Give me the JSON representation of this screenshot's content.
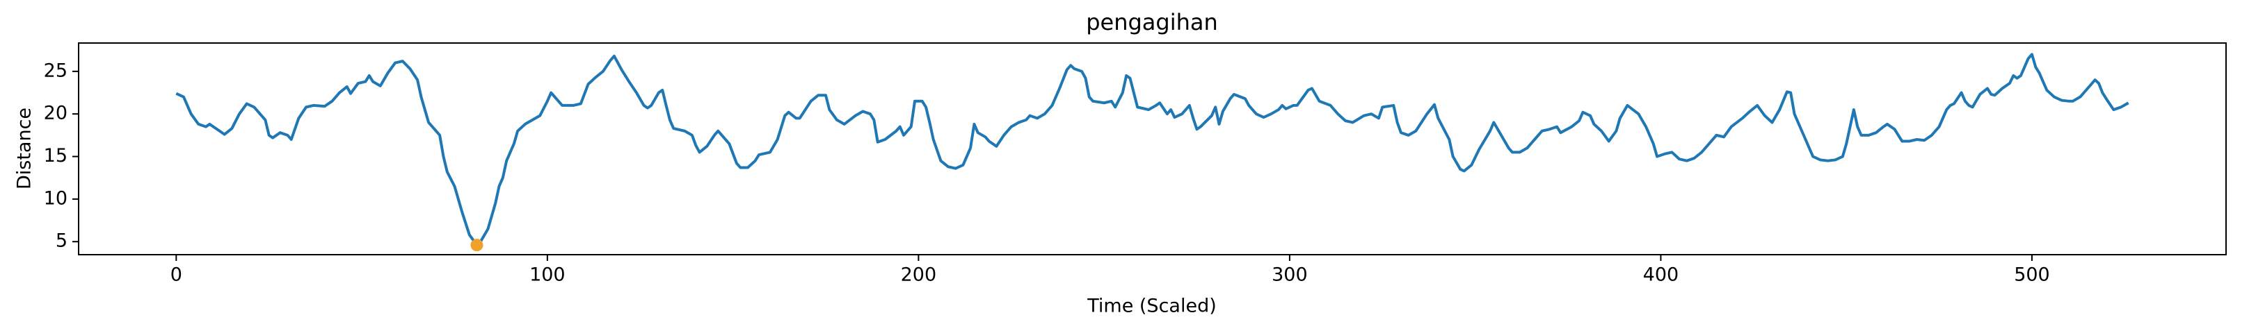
{
  "chart_data": {
    "type": "line",
    "title": "pengagihan",
    "xlabel": "Time (Scaled)",
    "ylabel": "Distance",
    "xlim": [
      -26.3,
      552.3
    ],
    "ylim": [
      3.47,
      28.33
    ],
    "xticks": [
      0,
      100,
      200,
      300,
      400,
      500
    ],
    "yticks": [
      5,
      10,
      15,
      20,
      25
    ],
    "grid": false,
    "x": [
      0,
      2,
      4,
      6,
      8,
      9,
      11,
      13,
      15,
      17,
      19,
      21,
      23,
      24,
      25,
      26,
      28,
      30,
      31,
      33,
      35,
      37,
      40,
      42,
      44,
      46,
      47,
      49,
      51,
      52,
      53,
      55,
      57,
      59,
      61,
      63,
      65,
      66,
      67,
      68,
      70,
      71,
      72,
      73,
      75,
      77,
      79,
      81,
      82,
      84,
      86,
      87,
      88,
      89,
      91,
      92,
      94,
      96,
      98,
      100,
      101,
      103,
      104,
      107,
      109,
      111,
      113,
      115,
      117,
      118,
      120,
      122,
      124,
      126,
      127,
      128,
      130,
      131,
      132,
      133,
      134,
      137,
      139,
      140,
      141,
      143,
      145,
      146,
      149,
      151,
      152,
      154,
      156,
      157,
      160,
      162,
      164,
      165,
      167,
      168,
      171,
      173,
      175,
      176,
      178,
      180,
      183,
      185,
      187,
      188,
      189,
      191,
      194,
      195,
      196,
      198,
      199,
      201,
      202,
      203,
      204,
      206,
      208,
      210,
      212,
      213,
      214,
      215,
      216,
      218,
      219,
      221,
      223,
      225,
      227,
      229,
      230,
      232,
      234,
      236,
      238,
      240,
      241,
      242,
      244,
      245,
      246,
      247,
      250,
      252,
      253,
      255,
      256,
      257,
      259,
      262,
      264,
      265,
      267,
      268,
      269,
      271,
      273,
      274,
      275,
      276,
      279,
      280,
      281,
      282,
      284,
      285,
      288,
      289,
      291,
      293,
      295,
      297,
      298,
      299,
      301,
      302,
      305,
      306,
      308,
      311,
      313,
      315,
      317,
      320,
      322,
      324,
      325,
      328,
      329,
      330,
      332,
      334,
      337,
      339,
      340,
      343,
      344,
      346,
      347,
      349,
      351,
      354,
      355,
      357,
      359,
      360,
      362,
      364,
      366,
      368,
      370,
      372,
      373,
      376,
      378,
      379,
      381,
      382,
      384,
      386,
      388,
      389,
      391,
      394,
      396,
      398,
      399,
      401,
      403,
      405,
      407,
      409,
      411,
      413,
      415,
      417,
      419,
      422,
      424,
      426,
      428,
      430,
      432,
      434,
      435,
      436,
      438,
      439,
      441,
      443,
      445,
      447,
      449,
      450,
      452,
      453,
      454,
      456,
      458,
      460,
      461,
      463,
      465,
      467,
      469,
      471,
      473,
      475,
      477,
      478,
      479,
      481,
      482,
      483,
      484,
      486,
      488,
      489,
      490,
      492,
      494,
      495,
      496,
      497,
      499,
      500,
      501,
      502,
      504,
      506,
      508,
      510,
      511,
      513,
      514,
      516,
      517,
      518,
      519,
      520,
      522,
      524,
      526
    ],
    "series": [
      {
        "color": "#1f77b4",
        "values": [
          22.4,
          22,
          20,
          18.8,
          18.5,
          18.8,
          18.2,
          17.6,
          18.3,
          20,
          21.2,
          20.8,
          19.8,
          19.3,
          17.5,
          17.2,
          17.8,
          17.5,
          17,
          19.5,
          20.8,
          21,
          20.9,
          21.5,
          22.5,
          23.2,
          22.4,
          23.6,
          23.8,
          24.5,
          23.8,
          23.3,
          24.8,
          26,
          26.2,
          25.3,
          24,
          22,
          20.5,
          19,
          18,
          17.5,
          15,
          13.2,
          11.5,
          8.5,
          5.8,
          4.6,
          5,
          6.5,
          9.5,
          11.5,
          12.5,
          14.5,
          16.5,
          18,
          18.8,
          19.3,
          19.8,
          21.5,
          22.5,
          21.5,
          21,
          21,
          21.2,
          23.5,
          24.3,
          25,
          26.3,
          26.8,
          25.2,
          23.8,
          22.5,
          21,
          20.7,
          21,
          22.5,
          22.8,
          21,
          19.3,
          18.3,
          18,
          17.5,
          16.3,
          15.5,
          16.2,
          17.5,
          18,
          16.5,
          14.2,
          13.7,
          13.7,
          14.5,
          15.2,
          15.5,
          17,
          19.8,
          20.2,
          19.5,
          19.5,
          21.5,
          22.2,
          22.2,
          20.5,
          19.3,
          18.8,
          19.8,
          20.3,
          20,
          19.3,
          16.7,
          17,
          18,
          18.5,
          17.5,
          18.5,
          21.5,
          21.5,
          20.8,
          19,
          17,
          14.5,
          13.8,
          13.6,
          14,
          15,
          16,
          18.8,
          17.8,
          17.3,
          16.8,
          16.2,
          17.5,
          18.5,
          19,
          19.3,
          19.8,
          19.5,
          20,
          21,
          23,
          25.2,
          25.7,
          25.3,
          25,
          24.2,
          22,
          21.5,
          21.3,
          21.5,
          20.8,
          22.5,
          24.5,
          24.2,
          20.8,
          20.5,
          21,
          21.3,
          20,
          20.5,
          19.6,
          20,
          21,
          19.5,
          18.2,
          18.5,
          19.8,
          20.8,
          18.8,
          20.3,
          21.8,
          22.3,
          21.8,
          21,
          20,
          19.6,
          20,
          20.5,
          21,
          20.6,
          21,
          21,
          22.8,
          23,
          21.5,
          21,
          20,
          19.2,
          19,
          19.8,
          20,
          19.5,
          20.8,
          21,
          19,
          17.8,
          17.5,
          18,
          20,
          21.1,
          19.5,
          17,
          15,
          13.5,
          13.3,
          14,
          15.8,
          18,
          19,
          17.5,
          16,
          15.5,
          15.5,
          16,
          17,
          18,
          18.2,
          18.5,
          17.8,
          18.5,
          19.2,
          20.2,
          19.8,
          18.8,
          18,
          16.8,
          18,
          19.5,
          21,
          20,
          18.5,
          16.5,
          15,
          15.3,
          15.5,
          14.7,
          14.5,
          14.8,
          15.5,
          16.5,
          17.5,
          17.3,
          18.5,
          19.5,
          20.3,
          21,
          19.8,
          19,
          20.5,
          22.6,
          22.5,
          20,
          18,
          17,
          15,
          14.6,
          14.5,
          14.6,
          15,
          16.5,
          20.5,
          18.5,
          17.5,
          17.5,
          17.8,
          18.5,
          18.8,
          18.2,
          16.8,
          16.8,
          17,
          16.9,
          17.5,
          18.5,
          20.5,
          21,
          21.2,
          22.5,
          21.5,
          21,
          20.8,
          22.3,
          23,
          22.3,
          22.2,
          23,
          23.6,
          24.5,
          24.2,
          24.5,
          26.5,
          27,
          25.5,
          24.8,
          22.8,
          22,
          21.6,
          21.5,
          21.5,
          22,
          22.5,
          23.5,
          24,
          23.6,
          22.5,
          21.8,
          20.5,
          20.8,
          21.3
        ]
      }
    ],
    "markers": [
      {
        "x": 81,
        "y": 4.6,
        "color": "#f0a02a"
      }
    ]
  }
}
